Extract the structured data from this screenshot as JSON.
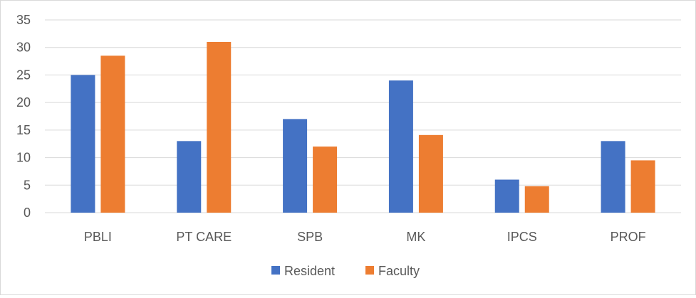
{
  "chart_data": {
    "type": "bar",
    "categories": [
      "PBLI",
      "PT CARE",
      "SPB",
      "MK",
      "IPCS",
      "PROF"
    ],
    "series": [
      {
        "name": "Resident",
        "values": [
          25,
          13,
          17,
          24,
          6,
          13
        ]
      },
      {
        "name": "Faculty",
        "values": [
          28.5,
          31,
          12,
          14.1,
          4.8,
          9.5
        ]
      }
    ],
    "yticks": [
      "0",
      "5",
      "10",
      "15",
      "20",
      "25",
      "30",
      "35"
    ],
    "ylim": [
      0,
      35
    ],
    "grid": true,
    "legend_position": "bottom",
    "colors": {
      "Resident": "#4472c4",
      "Faculty": "#ed7d31",
      "grid": "#d9d9d9",
      "text": "#595959"
    }
  }
}
